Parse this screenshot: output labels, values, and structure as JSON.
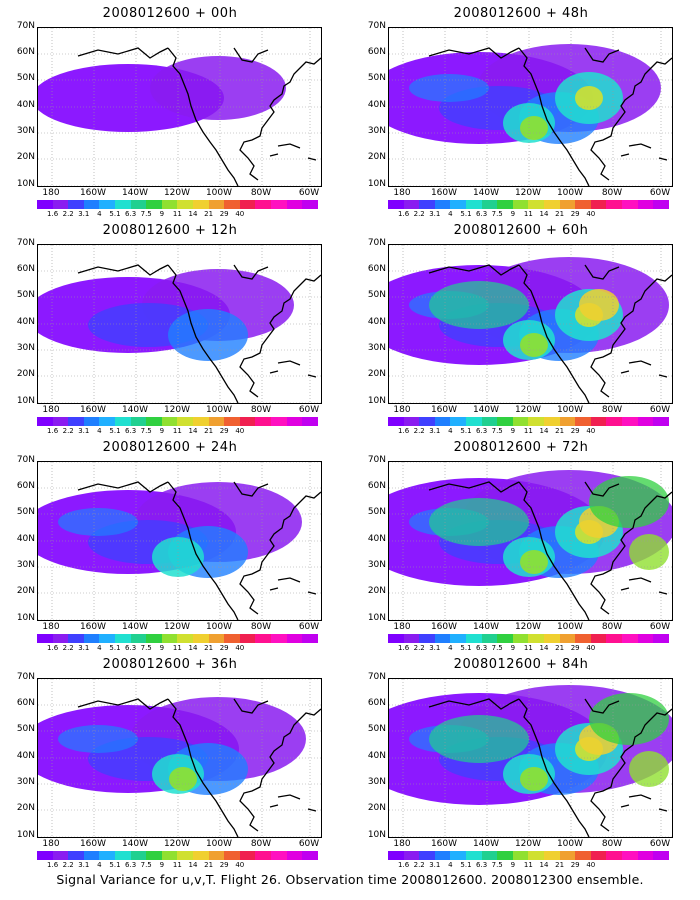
{
  "panels": [
    {
      "title": "2008012600 + 00h",
      "intensity": 1
    },
    {
      "title": "2008012600 + 48h",
      "intensity": 4
    },
    {
      "title": "2008012600 + 12h",
      "intensity": 2
    },
    {
      "title": "2008012600 + 60h",
      "intensity": 5
    },
    {
      "title": "2008012600 + 24h",
      "intensity": 3
    },
    {
      "title": "2008012600 + 72h",
      "intensity": 6
    },
    {
      "title": "2008012600 + 36h",
      "intensity": 3.5
    },
    {
      "title": "2008012600 + 84h",
      "intensity": 6.5
    }
  ],
  "lat_labels": [
    "70N",
    "60N",
    "50N",
    "40N",
    "30N",
    "20N",
    "10N"
  ],
  "lon_labels": [
    "180",
    "160W",
    "140W",
    "120W",
    "100W",
    "80W",
    "60W"
  ],
  "colorbar_labels": [
    "1.6",
    "2.2",
    "3.1",
    "4",
    "5.1",
    "6.3",
    "7.5",
    "9",
    "11",
    "14",
    "21",
    "29",
    "40"
  ],
  "colorbar_colors": [
    "#7f00ff",
    "#8a1cf0",
    "#4040ff",
    "#1f7fff",
    "#20b0ff",
    "#20e0d0",
    "#20d090",
    "#30d040",
    "#90e030",
    "#d0e030",
    "#f0d030",
    "#f0a030",
    "#f06030",
    "#f02050",
    "#ff1090",
    "#ff10c0",
    "#e000e0",
    "#c000f0"
  ],
  "caption": "Signal Variance for u,v,T. Flight 26. Observation time 2008012600. 2008012300 ensemble."
}
